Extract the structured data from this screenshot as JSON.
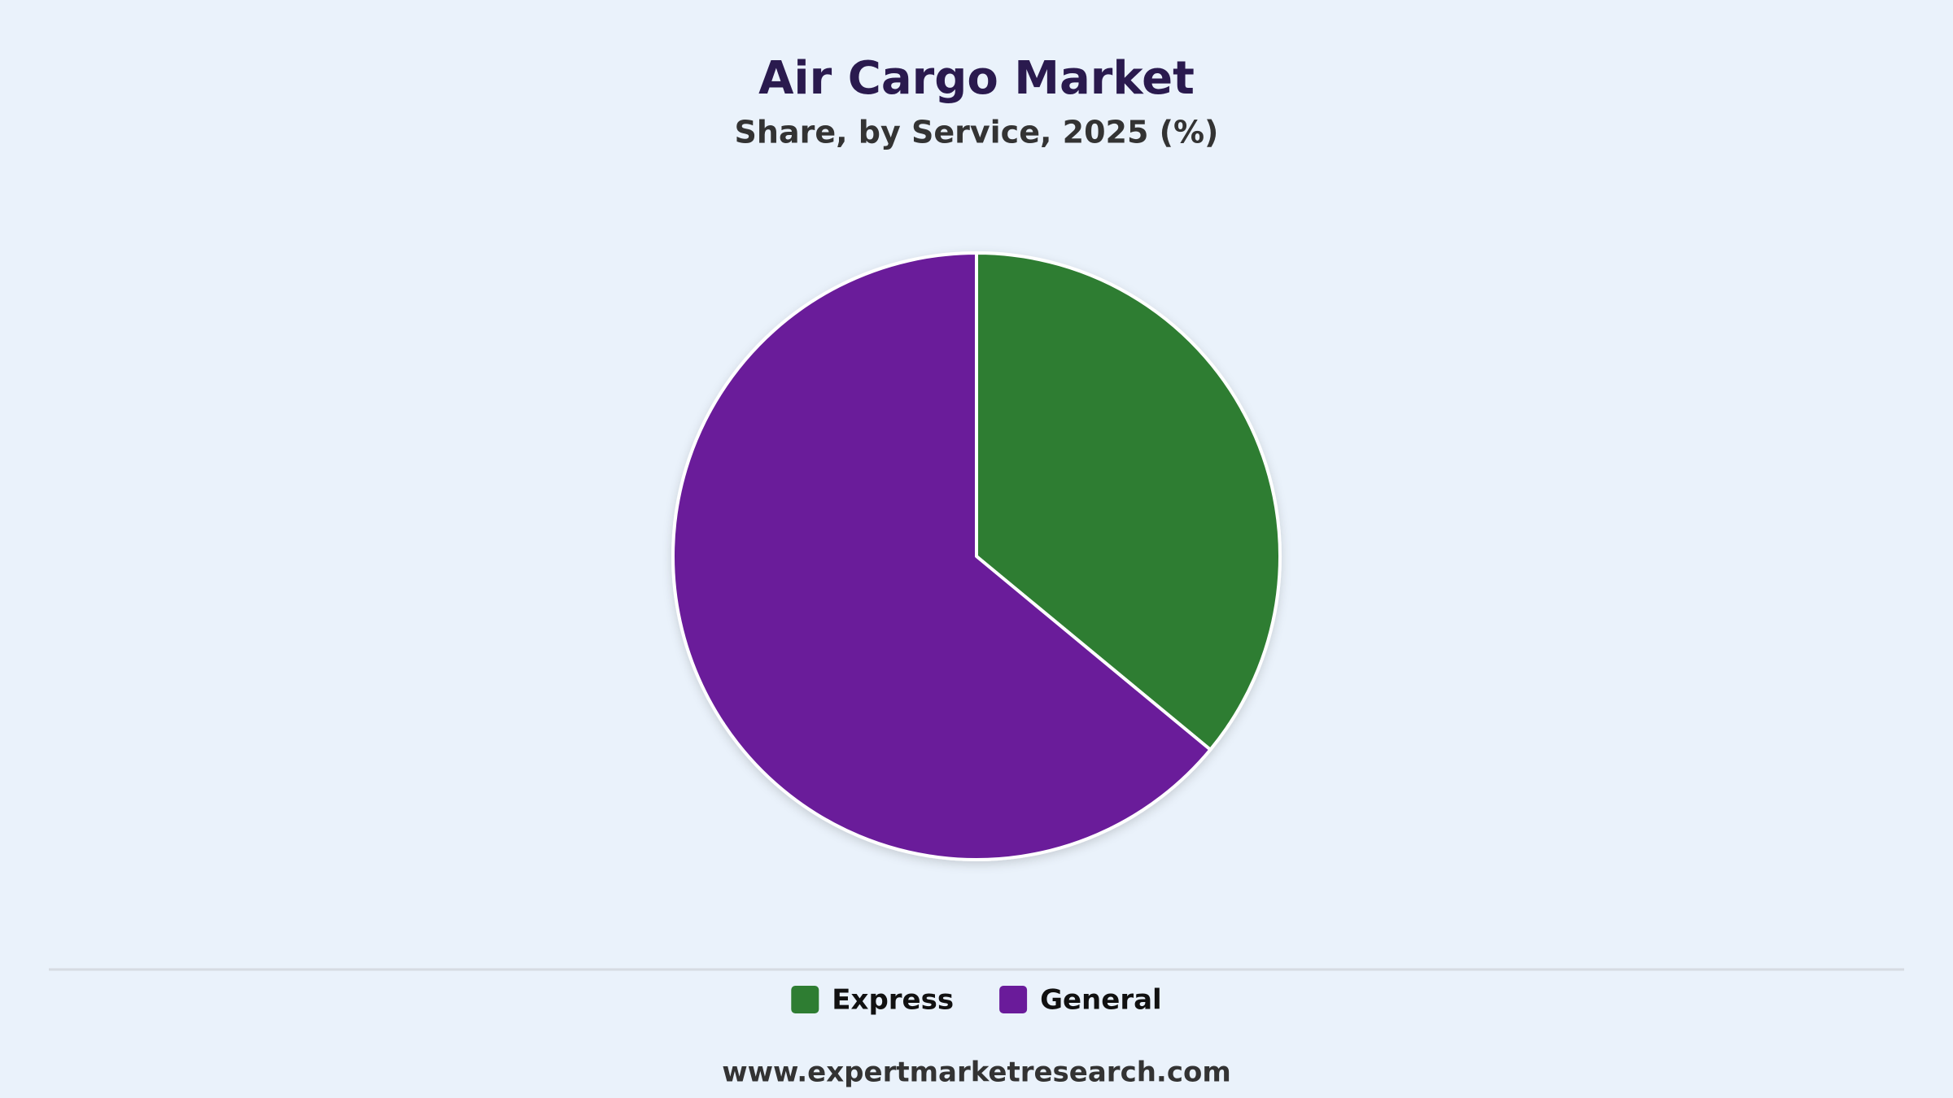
{
  "chart_data": {
    "type": "pie",
    "title": "Air Cargo Market",
    "subtitle": "Share, by Service, 2025 (%)",
    "categories": [
      "Express",
      "General"
    ],
    "values": [
      36,
      64
    ],
    "colors": [
      "#2e7d32",
      "#6a1b9a"
    ],
    "source": "www.expertmarketresearch.com"
  }
}
